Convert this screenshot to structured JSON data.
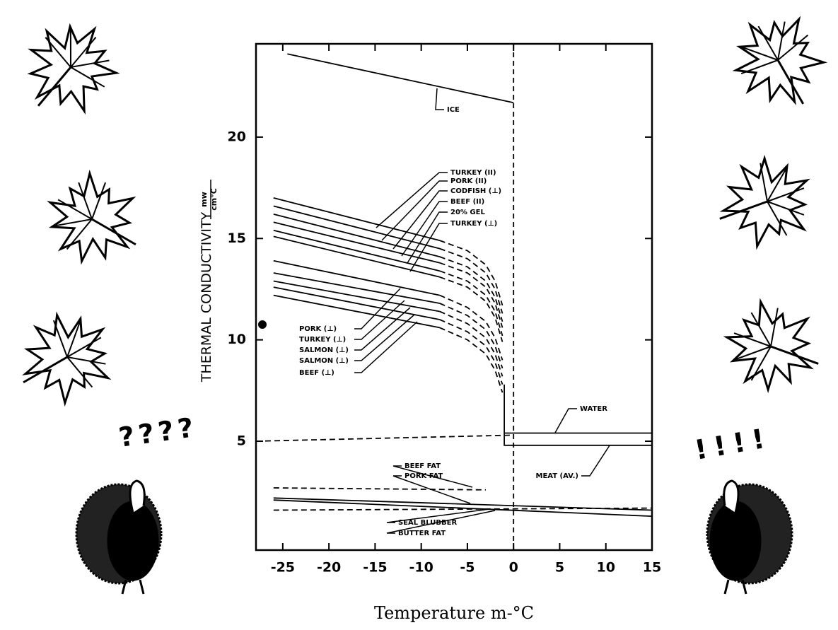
{
  "chart_data": {
    "type": "line",
    "y_label": "THERMAL CONDUCTIVITY",
    "y_unit_numerator": "mw",
    "y_unit_denominator": "cm°C",
    "x_label": "Temperature m-°C",
    "xlim": [
      -27.9,
      15
    ],
    "xticks": [
      -25,
      -20,
      -15,
      -10,
      -5,
      0,
      5,
      10,
      15
    ],
    "ylim": [
      -0.37,
      24.6
    ],
    "yticks": [
      5,
      10,
      15,
      20
    ],
    "vline": 0,
    "left_marks": "????",
    "right_marks": "!!!!",
    "series": [
      {
        "name": "ICE",
        "color": "#000",
        "segments": [
          {
            "style": "solid",
            "x": [
              -24.5,
              0
            ],
            "values": [
              24.1,
              21.7
            ]
          }
        ]
      },
      {
        "name": "WATER",
        "color": "#000",
        "segments": [
          {
            "style": "dashed",
            "x": [
              -27.9,
              0
            ],
            "values": [
              5.0,
              5.3
            ]
          },
          {
            "style": "solid",
            "x": [
              -1,
              15
            ],
            "values": [
              5.4,
              5.4
            ]
          }
        ]
      },
      {
        "name": "MEAT (AV.)",
        "color": "#000",
        "segments": [
          {
            "style": "solid",
            "x": [
              -1,
              -1,
              15
            ],
            "values": [
              7.8,
              4.8,
              4.8
            ]
          }
        ]
      },
      {
        "name": "BEEF FAT",
        "color": "#000",
        "segments": [
          {
            "style": "dashed",
            "x": [
              -26,
              -3
            ],
            "values": [
              2.7,
              2.6
            ]
          }
        ]
      },
      {
        "name": "PORK FAT",
        "color": "#000",
        "segments": [
          {
            "style": "solid",
            "x": [
              -26,
              15
            ],
            "values": [
              2.2,
              1.6
            ]
          }
        ]
      },
      {
        "name": "SEAL BLUBBER",
        "color": "#000",
        "segments": [
          {
            "style": "solid",
            "x": [
              -26,
              15
            ],
            "values": [
              2.1,
              1.3
            ]
          }
        ]
      },
      {
        "name": "BUTTER FAT",
        "color": "#000",
        "segments": [
          {
            "style": "dashed",
            "x": [
              -26,
              15
            ],
            "values": [
              1.6,
              1.7
            ]
          }
        ]
      },
      {
        "name": "TURKEY (II)",
        "color": "#000",
        "segments": [
          {
            "style": "solid",
            "x": [
              -26,
              -8
            ],
            "values": [
              17.0,
              14.9
            ]
          },
          {
            "style": "dashed",
            "x": [
              -8,
              -5,
              -3,
              -2,
              -1.2
            ],
            "values": [
              14.9,
              14.4,
              13.7,
              12.9,
              11.7
            ]
          }
        ]
      },
      {
        "name": "PORK (II)",
        "color": "#000",
        "segments": [
          {
            "style": "solid",
            "x": [
              -26,
              -8
            ],
            "values": [
              16.6,
              14.5
            ]
          },
          {
            "style": "dashed",
            "x": [
              -8,
              -5,
              -3,
              -2,
              -1.2
            ],
            "values": [
              14.5,
              14.0,
              13.3,
              12.5,
              11.3
            ]
          }
        ]
      },
      {
        "name": "CODFISH (⊥)",
        "color": "#000",
        "segments": [
          {
            "style": "solid",
            "x": [
              -26,
              -8
            ],
            "values": [
              16.2,
              14.1
            ]
          },
          {
            "style": "dashed",
            "x": [
              -8,
              -5,
              -3,
              -2,
              -1.2
            ],
            "values": [
              14.1,
              13.6,
              12.9,
              12.1,
              10.9
            ]
          }
        ]
      },
      {
        "name": "BEEF (II)",
        "color": "#000",
        "segments": [
          {
            "style": "solid",
            "x": [
              -26,
              -8
            ],
            "values": [
              15.8,
              13.8
            ]
          },
          {
            "style": "dashed",
            "x": [
              -8,
              -5,
              -3,
              -2,
              -1.2
            ],
            "values": [
              13.8,
              13.3,
              12.6,
              11.8,
              10.6
            ]
          }
        ]
      },
      {
        "name": "20% GEL",
        "color": "#000",
        "segments": [
          {
            "style": "solid",
            "x": [
              -26,
              -8
            ],
            "values": [
              15.4,
              13.4
            ]
          },
          {
            "style": "dashed",
            "x": [
              -8,
              -5,
              -3,
              -2,
              -1.2
            ],
            "values": [
              13.4,
              12.9,
              12.2,
              11.4,
              10.2
            ]
          }
        ]
      },
      {
        "name": "TURKEY (⊥)",
        "color": "#000",
        "segments": [
          {
            "style": "solid",
            "x": [
              -26,
              -8
            ],
            "values": [
              15.1,
              13.1
            ]
          },
          {
            "style": "dashed",
            "x": [
              -8,
              -5,
              -3,
              -2,
              -1.2
            ],
            "values": [
              13.1,
              12.6,
              11.9,
              11.1,
              9.9
            ]
          }
        ]
      },
      {
        "name": "PORK (⊥)",
        "color": "#000",
        "segments": [
          {
            "style": "solid",
            "x": [
              -26,
              -8
            ],
            "values": [
              13.9,
              12.2
            ]
          },
          {
            "style": "dashed",
            "x": [
              -8,
              -5,
              -3,
              -2,
              -1.2
            ],
            "values": [
              12.2,
              11.6,
              10.9,
              10.1,
              9.0
            ]
          }
        ]
      },
      {
        "name": "TURKEY (⊥)",
        "color": "#000",
        "segments": [
          {
            "style": "solid",
            "x": [
              -26,
              -8
            ],
            "values": [
              13.3,
              11.8
            ]
          },
          {
            "style": "dashed",
            "x": [
              -8,
              -5,
              -3,
              -2,
              -1.2
            ],
            "values": [
              11.8,
              11.2,
              10.5,
              9.7,
              8.6
            ]
          }
        ]
      },
      {
        "name": "SALMON (⊥)",
        "color": "#000",
        "segments": [
          {
            "style": "solid",
            "x": [
              -26,
              -8
            ],
            "values": [
              12.9,
              11.4
            ]
          },
          {
            "style": "dashed",
            "x": [
              -8,
              -5,
              -3,
              -2,
              -1.2
            ],
            "values": [
              11.4,
              10.8,
              10.1,
              9.3,
              8.2
            ]
          }
        ]
      },
      {
        "name": "SALMON (⊥)",
        "color": "#000",
        "segments": [
          {
            "style": "solid",
            "x": [
              -26,
              -8
            ],
            "values": [
              12.6,
              11.0
            ]
          },
          {
            "style": "dashed",
            "x": [
              -8,
              -5,
              -3,
              -2,
              -1.2
            ],
            "values": [
              11.0,
              10.4,
              9.7,
              8.9,
              7.8
            ]
          }
        ]
      },
      {
        "name": "BEEF (⊥)",
        "color": "#000",
        "segments": [
          {
            "style": "solid",
            "x": [
              -26,
              -8
            ],
            "values": [
              12.2,
              10.6
            ]
          },
          {
            "style": "dashed",
            "x": [
              -8,
              -5,
              -3,
              -2,
              -1.2
            ],
            "values": [
              10.6,
              10.0,
              9.3,
              8.5,
              7.4
            ]
          }
        ]
      }
    ]
  }
}
